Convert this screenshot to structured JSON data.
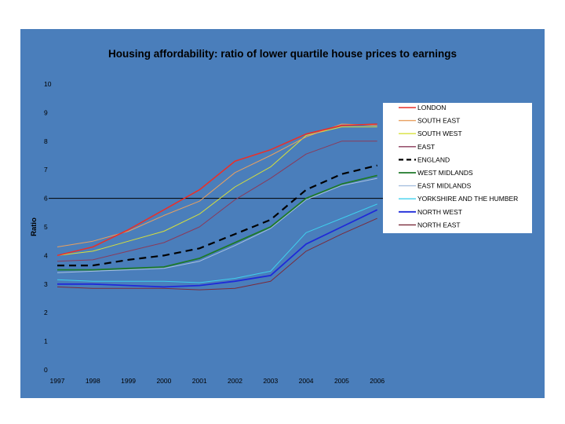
{
  "chart_data": {
    "type": "line",
    "title": "Housing affordability: ratio of lower quartile house prices to earnings",
    "xlabel": "",
    "ylabel": "Ratio",
    "ylim": [
      0,
      10
    ],
    "yticks": [
      0,
      1,
      2,
      3,
      4,
      5,
      6,
      7,
      8,
      9,
      10
    ],
    "categories": [
      "1997",
      "1998",
      "1999",
      "2000",
      "2001",
      "2002",
      "2003",
      "2004",
      "2005",
      "2006"
    ],
    "reference_line": 6,
    "legend_position": "top-right",
    "series": [
      {
        "name": "LONDON",
        "color": "#e8302a",
        "dash": "",
        "width": 1.6,
        "values": [
          4.0,
          4.3,
          4.9,
          5.6,
          6.3,
          7.3,
          7.7,
          8.25,
          8.55,
          8.6
        ]
      },
      {
        "name": "SOUTH EAST",
        "color": "#e8a060",
        "dash": "",
        "width": 1.0,
        "values": [
          4.3,
          4.5,
          4.85,
          5.4,
          5.9,
          6.9,
          7.5,
          8.15,
          8.6,
          8.55
        ]
      },
      {
        "name": "SOUTH WEST",
        "color": "#d7e03a",
        "dash": "",
        "width": 1.0,
        "values": [
          4.0,
          4.15,
          4.5,
          4.85,
          5.45,
          6.4,
          7.1,
          8.2,
          8.5,
          8.5
        ]
      },
      {
        "name": "EAST",
        "color": "#8a3a5a",
        "dash": "",
        "width": 1.0,
        "values": [
          3.8,
          3.85,
          4.15,
          4.45,
          5.0,
          5.95,
          6.7,
          7.55,
          8.0,
          8.0
        ]
      },
      {
        "name": "ENGLAND",
        "color": "#000000",
        "dash": "9 6",
        "width": 2.2,
        "values": [
          3.65,
          3.65,
          3.85,
          4.0,
          4.25,
          4.75,
          5.25,
          6.3,
          6.85,
          7.15
        ]
      },
      {
        "name": "WEST MIDLANDS",
        "color": "#1e7a2a",
        "dash": "",
        "width": 1.8,
        "values": [
          3.5,
          3.5,
          3.55,
          3.6,
          3.9,
          4.45,
          5.0,
          6.0,
          6.5,
          6.8
        ]
      },
      {
        "name": "EAST MIDLANDS",
        "color": "#a7c0e0",
        "dash": "",
        "width": 1.0,
        "values": [
          3.4,
          3.45,
          3.5,
          3.55,
          3.8,
          4.35,
          4.95,
          5.95,
          6.45,
          6.7
        ]
      },
      {
        "name": "YORKSHIRE AND THE HUMBER",
        "color": "#3fd0ee",
        "dash": "",
        "width": 1.0,
        "values": [
          3.15,
          3.1,
          3.1,
          3.1,
          3.05,
          3.2,
          3.45,
          4.8,
          5.3,
          5.8
        ]
      },
      {
        "name": "NORTH WEST",
        "color": "#1f2ad8",
        "dash": "",
        "width": 1.8,
        "values": [
          3.0,
          3.0,
          2.95,
          2.9,
          2.95,
          3.1,
          3.3,
          4.4,
          5.0,
          5.6
        ]
      },
      {
        "name": "NORTH EAST",
        "color": "#7a2a3a",
        "dash": "",
        "width": 1.0,
        "values": [
          2.9,
          2.85,
          2.85,
          2.85,
          2.8,
          2.85,
          3.1,
          4.15,
          4.75,
          5.3
        ]
      }
    ]
  }
}
